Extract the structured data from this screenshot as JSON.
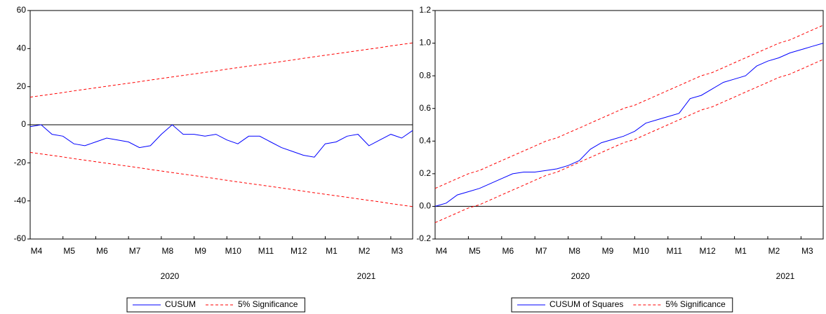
{
  "chart_data": [
    {
      "type": "line",
      "legend": "bottom",
      "zero_line": true,
      "categories": [
        "M4",
        null,
        null,
        "M5",
        null,
        null,
        "M6",
        null,
        null,
        "M7",
        null,
        null,
        "M8",
        null,
        null,
        "M9",
        null,
        null,
        "M10",
        null,
        null,
        "M11",
        null,
        null,
        "M12",
        null,
        null,
        "M1",
        null,
        null,
        "M2",
        null,
        null,
        "M3",
        null,
        null
      ],
      "years": [
        "2020",
        "2021"
      ],
      "ylim": [
        -60,
        60
      ],
      "yticks": [
        -60,
        -40,
        -20,
        0,
        20,
        40,
        60
      ],
      "series": [
        {
          "name": "CUSUM",
          "color": "#0000ff",
          "dash": "none",
          "values": [
            -1,
            0,
            -5,
            -6,
            -10,
            -11,
            -9,
            -7,
            -8,
            -9,
            -12,
            -11,
            -5,
            0,
            -5,
            -5,
            -6,
            -5,
            -8,
            -10,
            -6,
            -6,
            -9,
            -12,
            -14,
            -16,
            -17,
            -10,
            -9,
            -6,
            -5,
            -11,
            -8,
            -5,
            -7,
            -3
          ]
        },
        {
          "name": "5% Significance",
          "color": "#ff0000",
          "dash": "4,3",
          "values": [
            14.5,
            15.3,
            16.1,
            16.9,
            17.8,
            18.6,
            19.4,
            20.2,
            21.0,
            21.8,
            22.6,
            23.5,
            24.3,
            25.1,
            25.9,
            26.7,
            27.5,
            28.3,
            29.2,
            30.0,
            30.8,
            31.6,
            32.4,
            33.2,
            34.0,
            34.9,
            35.7,
            36.5,
            37.3,
            38.1,
            38.9,
            39.7,
            40.5,
            41.4,
            42.2,
            43.0
          ]
        },
        {
          "color": "#ff0000",
          "dash": "4,3",
          "values": [
            -14.5,
            -15.3,
            -16.1,
            -16.9,
            -17.8,
            -18.6,
            -19.4,
            -20.2,
            -21.0,
            -21.8,
            -22.6,
            -23.5,
            -24.3,
            -25.1,
            -25.9,
            -26.7,
            -27.5,
            -28.3,
            -29.2,
            -30.0,
            -30.8,
            -31.6,
            -32.4,
            -33.2,
            -34.0,
            -34.9,
            -35.7,
            -36.5,
            -37.3,
            -38.1,
            -38.9,
            -39.7,
            -40.5,
            -41.4,
            -42.2,
            -43.0
          ]
        }
      ]
    },
    {
      "type": "line",
      "legend": "bottom",
      "zero_line": true,
      "categories": [
        "M4",
        null,
        null,
        "M5",
        null,
        null,
        "M6",
        null,
        null,
        "M7",
        null,
        null,
        "M8",
        null,
        null,
        "M9",
        null,
        null,
        "M10",
        null,
        null,
        "M11",
        null,
        null,
        "M12",
        null,
        null,
        "M1",
        null,
        null,
        "M2",
        null,
        null,
        "M3",
        null,
        null
      ],
      "years": [
        "2020",
        "2021"
      ],
      "ylim": [
        -0.2,
        1.2
      ],
      "yticks": [
        -0.2,
        {
          "value": 0,
          "label": "0.0"
        },
        0.2,
        0.4,
        0.6,
        0.8,
        {
          "value": 1,
          "label": "1.0"
        },
        1.2
      ],
      "series": [
        {
          "name": "CUSUM of Squares",
          "color": "#0000ff",
          "dash": "none",
          "values": [
            0.0,
            0.02,
            0.07,
            0.09,
            0.11,
            0.14,
            0.17,
            0.2,
            0.21,
            0.21,
            0.22,
            0.23,
            0.25,
            0.28,
            0.35,
            0.39,
            0.41,
            0.43,
            0.46,
            0.51,
            0.53,
            0.55,
            0.57,
            0.66,
            0.68,
            0.72,
            0.76,
            0.78,
            0.8,
            0.86,
            0.89,
            0.91,
            0.94,
            0.96,
            0.98,
            1.0
          ]
        },
        {
          "name": "5% Significance",
          "color": "#ff0000",
          "dash": "4,3",
          "values": [
            0.11,
            0.14,
            0.17,
            0.2,
            0.22,
            0.25,
            0.28,
            0.31,
            0.34,
            0.37,
            0.4,
            0.42,
            0.45,
            0.48,
            0.51,
            0.54,
            0.57,
            0.6,
            0.62,
            0.65,
            0.68,
            0.71,
            0.74,
            0.77,
            0.8,
            0.82,
            0.85,
            0.88,
            0.91,
            0.94,
            0.97,
            1.0,
            1.02,
            1.05,
            1.08,
            1.11
          ]
        },
        {
          "color": "#ff0000",
          "dash": "4,3",
          "values": [
            -0.1,
            -0.07,
            -0.04,
            -0.01,
            0.01,
            0.04,
            0.07,
            0.1,
            0.13,
            0.16,
            0.19,
            0.21,
            0.24,
            0.27,
            0.3,
            0.33,
            0.36,
            0.39,
            0.41,
            0.44,
            0.47,
            0.5,
            0.53,
            0.56,
            0.59,
            0.61,
            0.64,
            0.67,
            0.7,
            0.73,
            0.76,
            0.79,
            0.81,
            0.84,
            0.87,
            0.9
          ]
        }
      ]
    }
  ]
}
